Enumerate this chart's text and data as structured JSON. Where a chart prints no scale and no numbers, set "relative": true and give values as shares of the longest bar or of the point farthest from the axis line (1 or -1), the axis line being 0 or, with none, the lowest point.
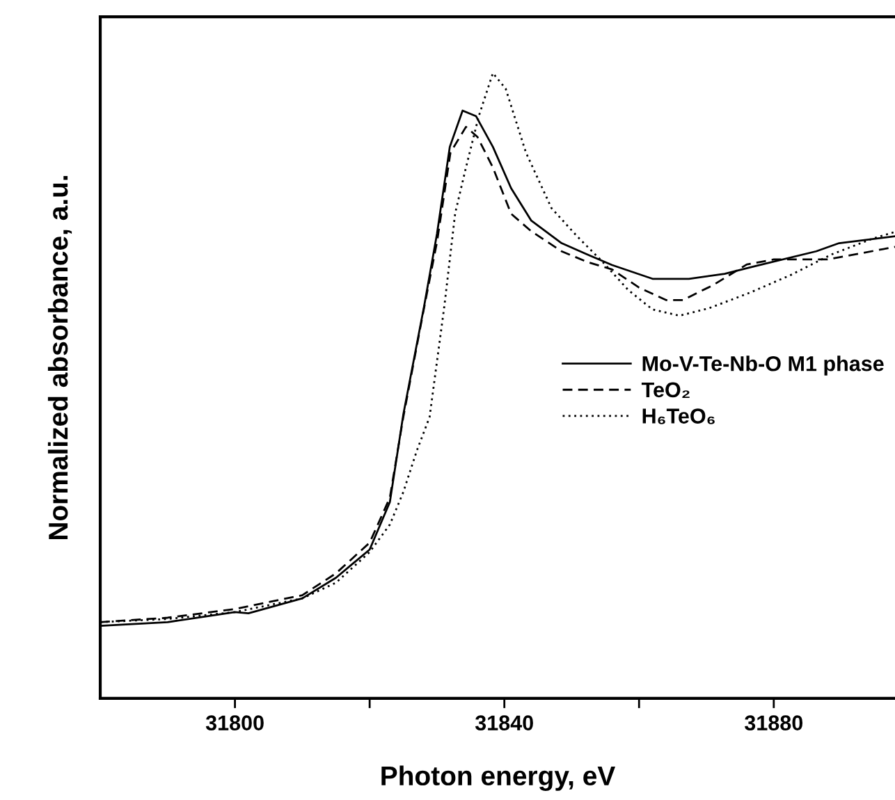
{
  "chart_data": {
    "type": "line",
    "xlabel": "Photon energy, eV",
    "ylabel": "Normalized absorbance, a.u.",
    "relative": true,
    "xlim": [
      31780,
      31898
    ],
    "xticks": [
      31800,
      {
        "value": 31820,
        "label": null
      },
      31840,
      {
        "value": 31860,
        "label": null
      },
      31880
    ],
    "legend": "right",
    "grid": false,
    "series": [
      {
        "name": "Mo-V-Te-Nb-O M1 phase",
        "color": "#000000",
        "line_style": "solid",
        "x": [
          31780,
          31790,
          31800,
          31802,
          31810,
          31815,
          31820,
          31823,
          31825,
          31828.1,
          31830,
          31831.9,
          31833.8,
          31835.8,
          31838.3,
          31841,
          31844,
          31848.5,
          31852.3,
          31856,
          31862,
          31867.4,
          31872.7,
          31877.1,
          31886.3,
          31889.7,
          31898
        ],
        "values": [
          0.116,
          0.122,
          0.138,
          0.136,
          0.16,
          0.193,
          0.238,
          0.314,
          0.454,
          0.628,
          0.743,
          0.882,
          0.94,
          0.931,
          0.882,
          0.816,
          0.764,
          0.728,
          0.71,
          0.693,
          0.671,
          0.671,
          0.679,
          0.691,
          0.715,
          0.728,
          0.739
        ]
      },
      {
        "name": "TeO₂",
        "color": "#000000",
        "line_style": "dashed",
        "x": [
          31780,
          31790,
          31800,
          31810,
          31815,
          31820,
          31823,
          31825,
          31828,
          31830,
          31832,
          31834.3,
          31836,
          31838.3,
          31841,
          31844,
          31848.5,
          31852.3,
          31856,
          31860,
          31864,
          31866.5,
          31871,
          31876,
          31880,
          31888,
          31898
        ],
        "values": [
          0.122,
          0.129,
          0.143,
          0.165,
          0.2,
          0.249,
          0.321,
          0.45,
          0.62,
          0.73,
          0.873,
          0.914,
          0.898,
          0.849,
          0.775,
          0.747,
          0.715,
          0.698,
          0.686,
          0.657,
          0.637,
          0.637,
          0.661,
          0.694,
          0.702,
          0.702,
          0.722
        ]
      },
      {
        "name": "H₆TeO₆",
        "color": "#000000",
        "line_style": "dotted",
        "x": [
          31780,
          31790,
          31800,
          31810,
          31815,
          31820,
          31823,
          31825,
          31827,
          31828.9,
          31831.1,
          31832.7,
          31834.3,
          31836.2,
          31838.3,
          31840.2,
          31843.2,
          31847,
          31850.8,
          31854.6,
          31858.4,
          31862,
          31866,
          31870.4,
          31876.5,
          31882.5,
          31888.6,
          31894.6,
          31898
        ],
        "values": [
          0.122,
          0.127,
          0.138,
          0.16,
          0.185,
          0.234,
          0.278,
          0.33,
          0.396,
          0.45,
          0.628,
          0.776,
          0.849,
          0.931,
          1.0,
          0.975,
          0.873,
          0.784,
          0.739,
          0.698,
          0.653,
          0.622,
          0.612,
          0.624,
          0.649,
          0.677,
          0.71,
          0.735,
          0.746
        ]
      }
    ]
  }
}
